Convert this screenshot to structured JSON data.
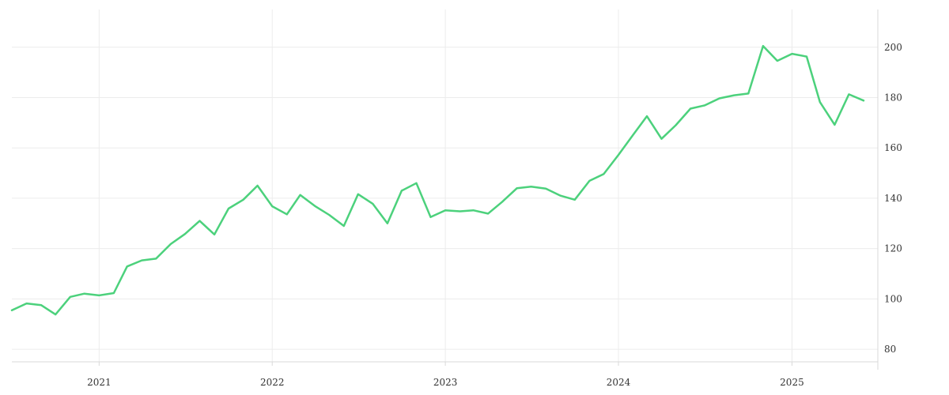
{
  "chart_data": {
    "type": "line",
    "title": "",
    "xlabel": "",
    "ylabel": "",
    "y_axis_side": "right",
    "grid": true,
    "legend": "none",
    "x_ticks": [
      "2021",
      "2022",
      "2023",
      "2024",
      "2025"
    ],
    "y_ticks": [
      80,
      100,
      120,
      140,
      160,
      180,
      200
    ],
    "xlim": [
      "2020-07-01",
      "2025-07-01"
    ],
    "ylim": [
      75,
      215
    ],
    "series": [
      {
        "color": "#4cd17c",
        "x": [
          "2020-07-01",
          "2020-08-01",
          "2020-09-01",
          "2020-10-01",
          "2020-11-01",
          "2020-12-01",
          "2021-01-01",
          "2021-02-01",
          "2021-03-01",
          "2021-04-01",
          "2021-05-01",
          "2021-06-01",
          "2021-07-01",
          "2021-08-01",
          "2021-09-01",
          "2021-10-01",
          "2021-11-01",
          "2021-12-01",
          "2022-01-01",
          "2022-02-01",
          "2022-03-01",
          "2022-04-01",
          "2022-05-01",
          "2022-06-01",
          "2022-07-01",
          "2022-08-01",
          "2022-09-01",
          "2022-10-01",
          "2022-11-01",
          "2022-12-01",
          "2023-01-01",
          "2023-02-01",
          "2023-03-01",
          "2023-04-01",
          "2023-05-01",
          "2023-06-01",
          "2023-07-01",
          "2023-08-01",
          "2023-09-01",
          "2023-10-01",
          "2023-11-01",
          "2023-12-01",
          "2024-01-01",
          "2024-02-01",
          "2024-03-01",
          "2024-04-01",
          "2024-05-01",
          "2024-06-01",
          "2024-07-01",
          "2024-08-01",
          "2024-09-01",
          "2024-10-01",
          "2024-11-01",
          "2024-12-01",
          "2025-01-01",
          "2025-02-01",
          "2025-03-01",
          "2025-04-01",
          "2025-05-01",
          "2025-06-01"
        ],
        "values": [
          95.5,
          98.2,
          97.5,
          93.8,
          100.8,
          102.1,
          101.4,
          102.3,
          112.9,
          115.3,
          116.0,
          121.8,
          125.8,
          131.0,
          125.6,
          135.9,
          139.4,
          145.0,
          136.8,
          133.6,
          141.3,
          136.9,
          133.4,
          129.0,
          141.6,
          137.8,
          130.0,
          143.0,
          146.0,
          132.5,
          135.2,
          134.8,
          135.2,
          133.9,
          138.6,
          144.0,
          144.6,
          143.8,
          141.0,
          139.4,
          146.9,
          149.6,
          157.2,
          165.2,
          172.6,
          163.6,
          169.0,
          175.6,
          176.9,
          179.7,
          180.9,
          181.6,
          200.5,
          194.6,
          197.4,
          196.3,
          178.2,
          169.2,
          181.3,
          178.8
        ]
      }
    ]
  }
}
